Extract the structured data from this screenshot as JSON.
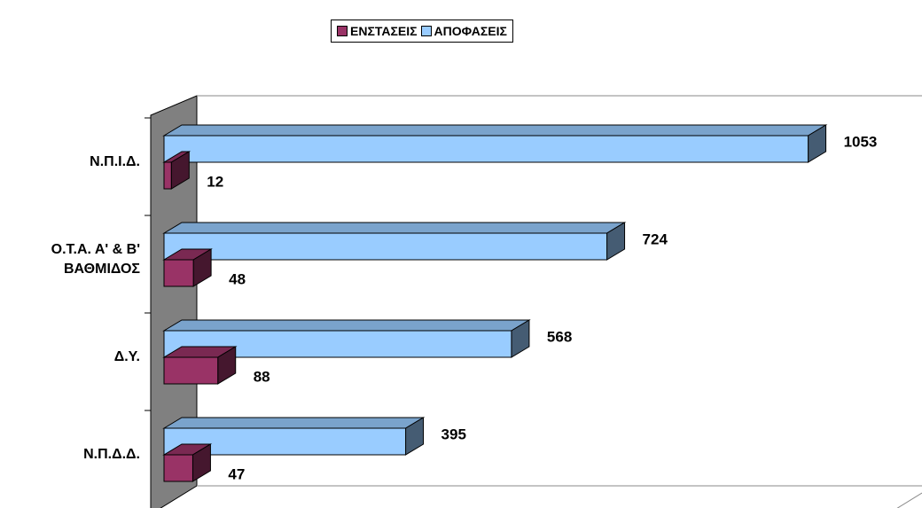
{
  "chart_data": {
    "type": "bar3d_horizontal",
    "categories": [
      "Ν.Π.Ι.Δ.",
      "Ο.Τ.Α. Α' & Β' ΒΑΘΜΙΔΟΣ",
      "Δ.Υ.",
      "Ν.Π.Δ.Δ."
    ],
    "series": [
      {
        "name": "ΕΝΣΤΑΣΕΙΣ",
        "color": "#993366",
        "values": [
          12,
          48,
          88,
          47
        ]
      },
      {
        "name": "ΑΠΟΦΑΣΕΙΣ",
        "color": "#99ccff",
        "values": [
          1053,
          724,
          568,
          395
        ]
      }
    ],
    "xlim": [
      0,
      1200
    ],
    "legend": "top"
  }
}
